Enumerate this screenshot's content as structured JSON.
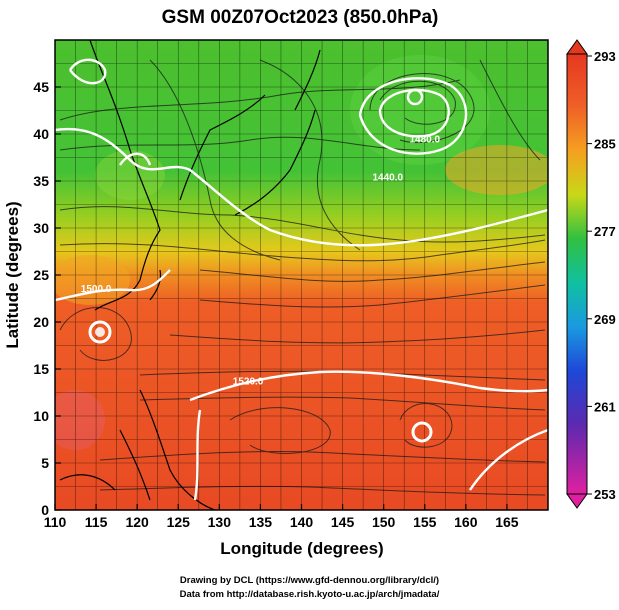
{
  "title": "GSM 00Z07Oct2023 (850.0hPa)",
  "axes": {
    "xlabel": "Longitude (degrees)",
    "ylabel": "Latitude  (degrees)",
    "xlim": [
      110,
      170
    ],
    "ylim": [
      0,
      50
    ],
    "xticks": [
      "110",
      "115",
      "120",
      "125",
      "130",
      "135",
      "140",
      "145",
      "150",
      "155",
      "160",
      "165"
    ],
    "yticks": [
      "0",
      "5",
      "10",
      "15",
      "20",
      "25",
      "30",
      "35",
      "40",
      "45"
    ]
  },
  "colorbar": {
    "labels": [
      "293",
      "285",
      "277",
      "269",
      "261",
      "253"
    ],
    "range": [
      253,
      293
    ],
    "colors": [
      "#e0207a",
      "#8a2aa0",
      "#1e3bd0",
      "#1a8ae0",
      "#10c0c8",
      "#20c060",
      "#3ec034",
      "#a8d018",
      "#f0c018",
      "#f59020",
      "#f06028",
      "#e63820"
    ]
  },
  "contour_labels": [
    {
      "text": "1520.0",
      "lon": 133.5,
      "lat": 13.8
    },
    {
      "text": "1500.0",
      "lon": 115.0,
      "lat": 23.6
    },
    {
      "text": "1480.0",
      "lon": 155.0,
      "lat": 39.5
    },
    {
      "text": "1440.0",
      "lon": 150.5,
      "lat": 35.5
    }
  ],
  "credits": {
    "line1": "Drawing by DCL (https://www.gfd-dennou.org/library/dcl/)",
    "line2": "Data from http://database.rish.kyoto-u.ac.jp/arch/jmadata/"
  }
}
